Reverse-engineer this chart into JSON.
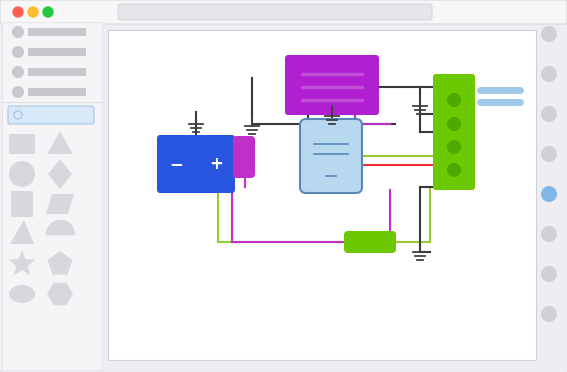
{
  "bg_outer": "#eeeef2",
  "titlebar_color": "#f7f7f9",
  "btn_red": "#ff5f57",
  "btn_yellow": "#febc2e",
  "btn_green": "#28c840",
  "sidebar_bg": "#f5f5f7",
  "canvas_bg": "#ffffff",
  "right_circle_gray": "#d0d0d5",
  "right_circle_blue": "#7fb8e8",
  "sidebar_item_color": "#c8c8cc",
  "sidebar_shape_color": "#c8c8cc",
  "search_fill": "#d8e8f8",
  "search_border": "#a8c8e8",
  "battery_color": "#2855e0",
  "purple_box_color": "#b020d0",
  "purple_line_color": "#c050d8",
  "green_box_color": "#6cc800",
  "green_pin_color": "#4aaa00",
  "relay_fill": "#b8d8f0",
  "relay_border": "#5888b8",
  "wire_dark": "#383838",
  "wire_purple": "#c030c8",
  "wire_green": "#98cc30",
  "wire_red": "#e83030",
  "ground_color": "#404040",
  "blue_info_color": "#a0c8e8",
  "resistor_green": "#6cc800"
}
